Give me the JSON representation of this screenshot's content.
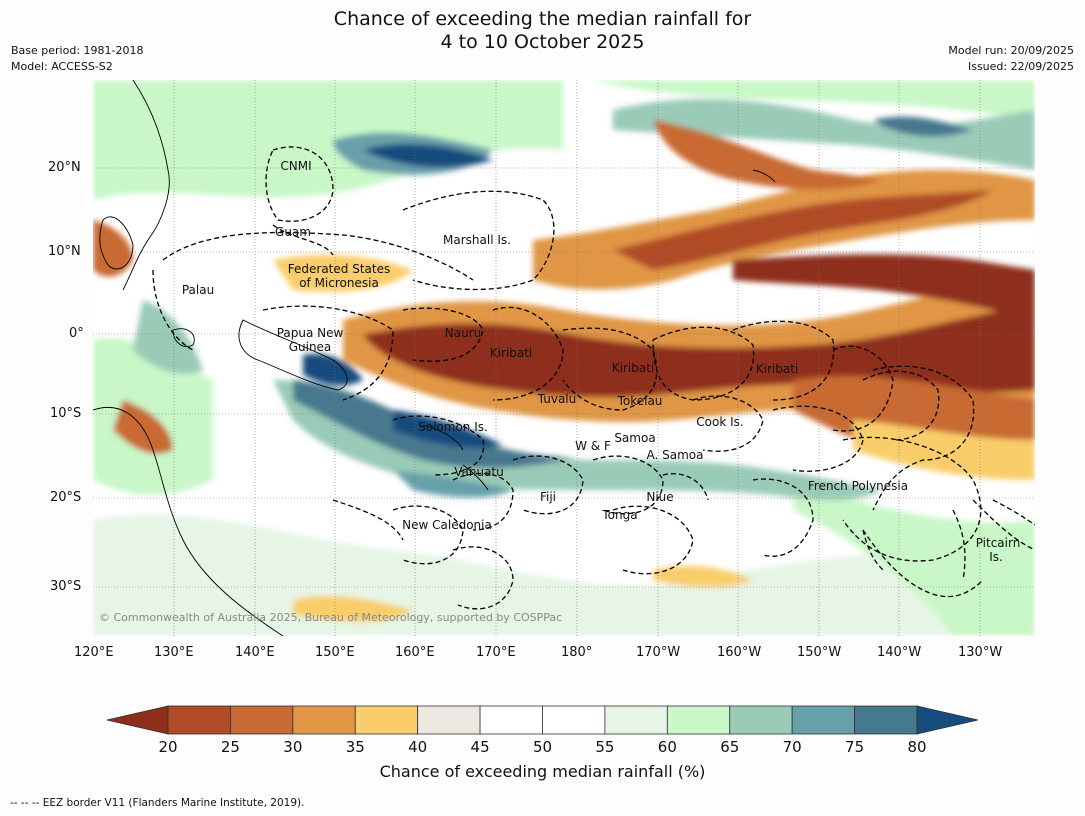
{
  "header": {
    "title_line1": "Chance of exceeding the median rainfall for",
    "title_line2": "4 to 10 October 2025",
    "base_period": "Base period: 1981-2018",
    "model": "Model: ACCESS-S2",
    "model_run": "Model run: 20/09/2025",
    "issued": "Issued: 22/09/2025"
  },
  "map": {
    "copyright": "© Commonwealth of Australia 2025, Bureau of Meteorology, supported by COSPPac",
    "lon_ticks": [
      "120°E",
      "130°E",
      "140°E",
      "150°E",
      "160°E",
      "170°E",
      "180°",
      "170°W",
      "160°W",
      "150°W",
      "140°W",
      "130°W"
    ],
    "lat_ticks": [
      "20°N",
      "10°N",
      "0°",
      "10°S",
      "20°S",
      "30°S"
    ],
    "regions": [
      {
        "name": "CNMI"
      },
      {
        "name": "Guam"
      },
      {
        "name": "Marshall Is."
      },
      {
        "name": "Federated States"
      },
      {
        "name": "of Micronesia"
      },
      {
        "name": "Palau"
      },
      {
        "name": "Papua New"
      },
      {
        "name": "Guinea"
      },
      {
        "name": "Nauru"
      },
      {
        "name": "Kiribati"
      },
      {
        "name": "Kiribati"
      },
      {
        "name": "Kiribati"
      },
      {
        "name": "Tuvalu"
      },
      {
        "name": "Tokelau"
      },
      {
        "name": "Cook Is."
      },
      {
        "name": "Solomon Is."
      },
      {
        "name": "W & F"
      },
      {
        "name": "Samoa"
      },
      {
        "name": "A. Samoa"
      },
      {
        "name": "Vanuatu"
      },
      {
        "name": "Fiji"
      },
      {
        "name": "Niue"
      },
      {
        "name": "Tonga"
      },
      {
        "name": "French Polynesia"
      },
      {
        "name": "New Caledonia"
      },
      {
        "name": "Pitcairn"
      },
      {
        "name": "Is."
      }
    ]
  },
  "colorbar": {
    "label": "Chance of exceeding median rainfall (%)",
    "ticks": [
      "20",
      "25",
      "30",
      "35",
      "40",
      "45",
      "50",
      "55",
      "60",
      "65",
      "70",
      "75",
      "80"
    ],
    "colors": {
      "below_20": "#8e2e1b",
      "20_25": "#b04b27",
      "25_30": "#c86a33",
      "30_35": "#e09645",
      "35_40": "#f9cd6b",
      "40_45": "#ece9e3",
      "45_50": "#ffffff",
      "50_55": "#ffffff",
      "55_60": "#e6f5e6",
      "60_65": "#c9f7c8",
      "65_70": "#9acbb7",
      "70_75": "#67a0aa",
      "75_80": "#46788e",
      "above_80": "#164c7e"
    }
  },
  "footer": {
    "note": "--  --  -- EEZ border V11 (Flanders Marine Institute, 2019)."
  }
}
